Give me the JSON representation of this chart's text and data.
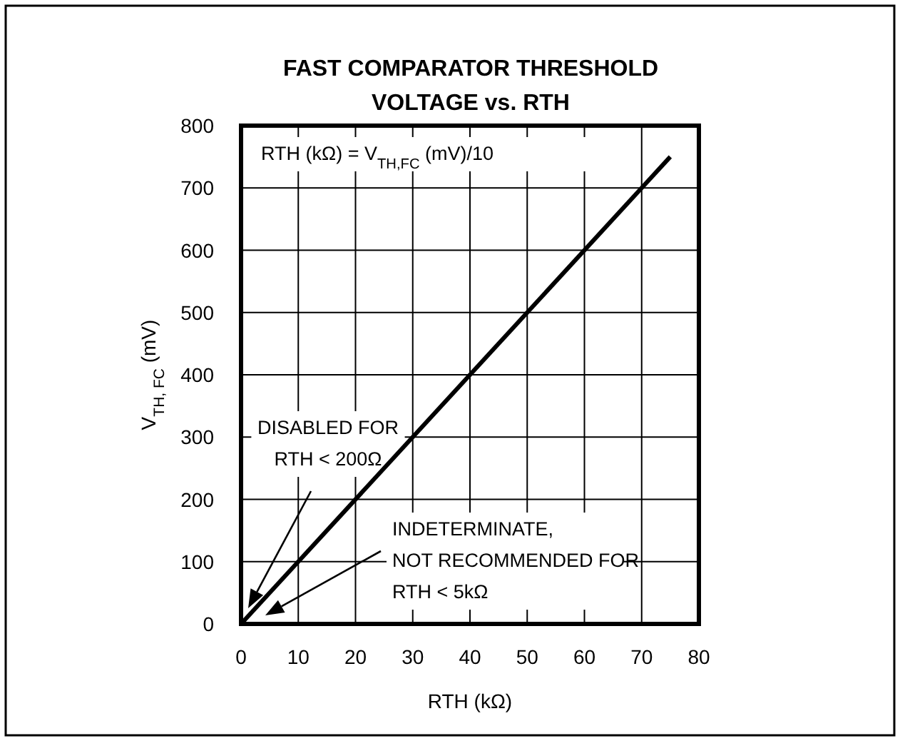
{
  "chart_data": {
    "type": "line",
    "title": "FAST COMPARATOR THRESHOLD\nVOLTAGE vs. RTH",
    "xlabel": "RTH (kΩ)",
    "ylabel": "V$_{TH, FC}$ (mV)",
    "x": [
      0,
      75
    ],
    "series": [
      {
        "color": "#000000",
        "values": [
          0,
          750
        ]
      }
    ],
    "xlim": [
      0,
      80
    ],
    "ylim": [
      0,
      800
    ],
    "xticks": [
      0,
      10,
      20,
      30,
      40,
      50,
      60,
      70,
      80
    ],
    "yticks": [
      0,
      100,
      200,
      300,
      400,
      500,
      600,
      700,
      800
    ],
    "grid": true,
    "annotations": [
      "RTH (kΩ) = V$_{TH,FC}$ (mV)/10",
      "DISABLED FOR\nRTH < 200Ω",
      "INDETERMINATE,\nNOT RECOMMENDED FOR\nRTH < 5kΩ"
    ]
  }
}
